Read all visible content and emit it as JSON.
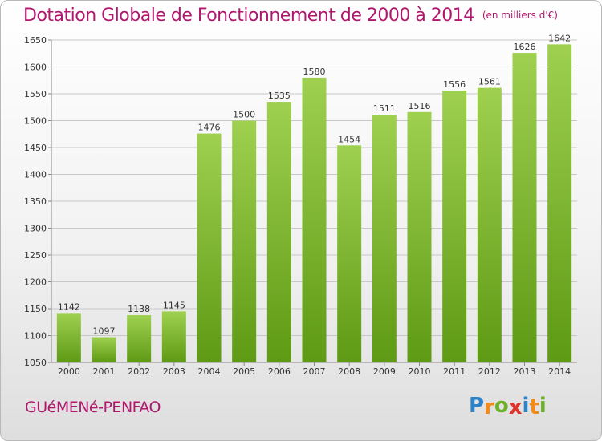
{
  "chart_data": {
    "type": "bar",
    "title": "Dotation Globale de Fonctionnement de 2000 à 2014",
    "subtitle": "(en milliers d'€)",
    "categories": [
      "2000",
      "2001",
      "2002",
      "2003",
      "2004",
      "2005",
      "2006",
      "2007",
      "2008",
      "2009",
      "2010",
      "2011",
      "2012",
      "2013",
      "2014"
    ],
    "values": [
      1142,
      1097,
      1138,
      1145,
      1476,
      1500,
      1535,
      1580,
      1454,
      1511,
      1516,
      1556,
      1561,
      1626,
      1642
    ],
    "ylim": [
      1050,
      1650
    ],
    "yticks": [
      1050,
      1100,
      1150,
      1200,
      1250,
      1300,
      1350,
      1400,
      1450,
      1500,
      1550,
      1600,
      1650
    ],
    "grid": true,
    "legend": "none",
    "colors": {
      "bar_top": "#9fd050",
      "bar_bottom": "#5e9a14",
      "title": "#b0186e"
    }
  },
  "footer": {
    "commune": "GUéMENé-PENFAO",
    "logo": {
      "letters": [
        "P",
        "r",
        "o",
        "x",
        "i",
        "t",
        "i"
      ],
      "colors": [
        "#2e83c6",
        "#f08a1c",
        "#6fb22a",
        "#e2322b",
        "#2e83c6",
        "#f08a1c",
        "#6fb22a"
      ]
    }
  }
}
